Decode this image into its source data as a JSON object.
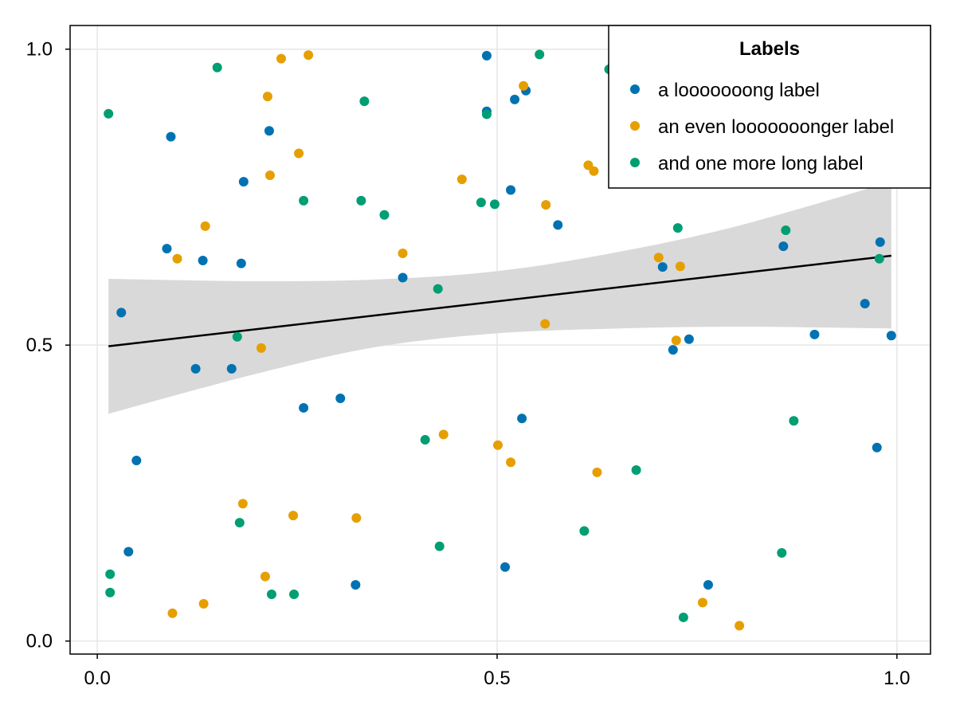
{
  "chart_data": {
    "type": "scatter",
    "title": "",
    "xlabel": "",
    "ylabel": "",
    "xlim": [
      -0.034,
      1.042
    ],
    "ylim": [
      -0.022,
      1.04
    ],
    "xticks": [
      0.0,
      0.5,
      1.0
    ],
    "yticks": [
      0.0,
      0.5,
      1.0
    ],
    "xtick_labels": [
      "0.0",
      "0.5",
      "1.0"
    ],
    "ytick_labels": [
      "0.0",
      "0.5",
      "1.0"
    ],
    "grid": true,
    "legend": {
      "title": "Labels",
      "position": "top-right"
    },
    "series": [
      {
        "name": "a looooooong label",
        "color": "#0072b2",
        "points": [
          [
            0.03,
            0.555
          ],
          [
            0.049,
            0.305
          ],
          [
            0.039,
            0.151
          ],
          [
            0.092,
            0.852
          ],
          [
            0.087,
            0.663
          ],
          [
            0.123,
            0.46
          ],
          [
            0.132,
            0.643
          ],
          [
            0.168,
            0.46
          ],
          [
            0.18,
            0.638
          ],
          [
            0.183,
            0.776
          ],
          [
            0.215,
            0.862
          ],
          [
            0.258,
            0.394
          ],
          [
            0.304,
            0.41
          ],
          [
            0.323,
            0.095
          ],
          [
            0.382,
            0.614
          ],
          [
            0.487,
            0.989
          ],
          [
            0.487,
            0.895
          ],
          [
            0.51,
            0.125
          ],
          [
            0.517,
            0.762
          ],
          [
            0.522,
            0.915
          ],
          [
            0.531,
            0.376
          ],
          [
            0.536,
            0.93
          ],
          [
            0.576,
            0.703
          ],
          [
            0.707,
            0.632
          ],
          [
            0.72,
            0.492
          ],
          [
            0.74,
            0.51
          ],
          [
            0.764,
            0.095
          ],
          [
            0.858,
            0.667
          ],
          [
            0.897,
            0.518
          ],
          [
            0.96,
            0.57
          ],
          [
            0.975,
            0.327
          ],
          [
            0.979,
            0.674
          ],
          [
            0.993,
            0.516
          ]
        ]
      },
      {
        "name": "an even looooooonger label",
        "color": "#e69f00",
        "points": [
          [
            0.094,
            0.047
          ],
          [
            0.1,
            0.646
          ],
          [
            0.133,
            0.063
          ],
          [
            0.135,
            0.701
          ],
          [
            0.182,
            0.232
          ],
          [
            0.21,
            0.109
          ],
          [
            0.213,
            0.92
          ],
          [
            0.216,
            0.787
          ],
          [
            0.205,
            0.495
          ],
          [
            0.23,
            0.984
          ],
          [
            0.245,
            0.212
          ],
          [
            0.252,
            0.824
          ],
          [
            0.264,
            0.99
          ],
          [
            0.324,
            0.208
          ],
          [
            0.382,
            0.655
          ],
          [
            0.433,
            0.349
          ],
          [
            0.456,
            0.78
          ],
          [
            0.501,
            0.331
          ],
          [
            0.517,
            0.302
          ],
          [
            0.533,
            0.938
          ],
          [
            0.56,
            0.536
          ],
          [
            0.561,
            0.737
          ],
          [
            0.614,
            0.804
          ],
          [
            0.621,
            0.794
          ],
          [
            0.625,
            0.285
          ],
          [
            0.702,
            0.648
          ],
          [
            0.724,
            0.508
          ],
          [
            0.729,
            0.633
          ],
          [
            0.757,
            0.065
          ],
          [
            0.803,
            0.026
          ]
        ]
      },
      {
        "name": "and one more long label",
        "color": "#009e73",
        "points": [
          [
            0.014,
            0.891
          ],
          [
            0.016,
            0.113
          ],
          [
            0.016,
            0.082
          ],
          [
            0.15,
            0.969
          ],
          [
            0.175,
            0.514
          ],
          [
            0.178,
            0.2
          ],
          [
            0.218,
            0.079
          ],
          [
            0.246,
            0.079
          ],
          [
            0.258,
            0.744
          ],
          [
            0.33,
            0.744
          ],
          [
            0.334,
            0.912
          ],
          [
            0.359,
            0.72
          ],
          [
            0.41,
            0.34
          ],
          [
            0.426,
            0.595
          ],
          [
            0.428,
            0.16
          ],
          [
            0.48,
            0.741
          ],
          [
            0.487,
            0.89
          ],
          [
            0.497,
            0.738
          ],
          [
            0.553,
            0.991
          ],
          [
            0.609,
            0.186
          ],
          [
            0.64,
            0.966
          ],
          [
            0.674,
            0.289
          ],
          [
            0.726,
            0.698
          ],
          [
            0.733,
            0.04
          ],
          [
            0.856,
            0.149
          ],
          [
            0.861,
            0.694
          ],
          [
            0.871,
            0.372
          ],
          [
            0.978,
            0.646
          ]
        ]
      }
    ],
    "fit": {
      "color": "#000000",
      "band_color": "#d9d9d9",
      "line": [
        [
          0.014,
          0.498
        ],
        [
          0.993,
          0.651
        ]
      ],
      "band_upper": [
        [
          0.014,
          0.612
        ],
        [
          0.2,
          0.608
        ],
        [
          0.35,
          0.611
        ],
        [
          0.5,
          0.625
        ],
        [
          0.65,
          0.657
        ],
        [
          0.8,
          0.701
        ],
        [
          0.993,
          0.776
        ]
      ],
      "band_lower": [
        [
          0.014,
          0.384
        ],
        [
          0.2,
          0.452
        ],
        [
          0.35,
          0.497
        ],
        [
          0.5,
          0.52
        ],
        [
          0.65,
          0.528
        ],
        [
          0.8,
          0.531
        ],
        [
          0.993,
          0.528
        ]
      ]
    }
  }
}
